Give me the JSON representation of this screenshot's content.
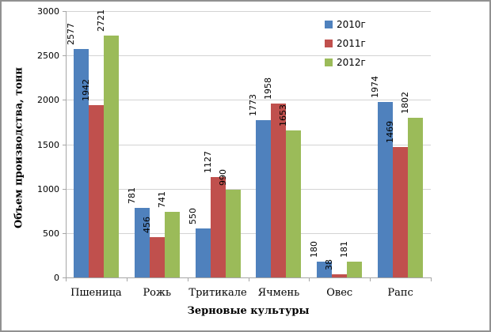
{
  "chart_data": {
    "type": "bar",
    "title": "",
    "categories": [
      "Пшеница",
      "Рожь",
      "Тритикале",
      "Ячмень",
      "Овес",
      "Рапс"
    ],
    "series": [
      {
        "name": "2010г",
        "color": "#4F81BD",
        "values": [
          2577,
          781,
          550,
          1773,
          180,
          1974
        ]
      },
      {
        "name": "2011г",
        "color": "#C0504D",
        "values": [
          1942,
          456,
          1127,
          1958,
          38,
          1469
        ]
      },
      {
        "name": "2012г",
        "color": "#9BBB59",
        "values": [
          2721,
          741,
          990,
          1653,
          181,
          1802
        ]
      }
    ],
    "xlabel": "Зерновые культуры",
    "ylabel": "Объем производства, тонн",
    "ylim": [
      0,
      3000
    ],
    "yticks": [
      0,
      500,
      1000,
      1500,
      2000,
      2500,
      3000
    ],
    "grid": "horizontal",
    "legend_position": "top-right",
    "bar_value_labels": "rotated-90-above-bars",
    "axis_color": "#A6A6A6",
    "grid_color": "#D3D3D3",
    "text_color": "#000000",
    "frame_border_color": "#919191"
  }
}
